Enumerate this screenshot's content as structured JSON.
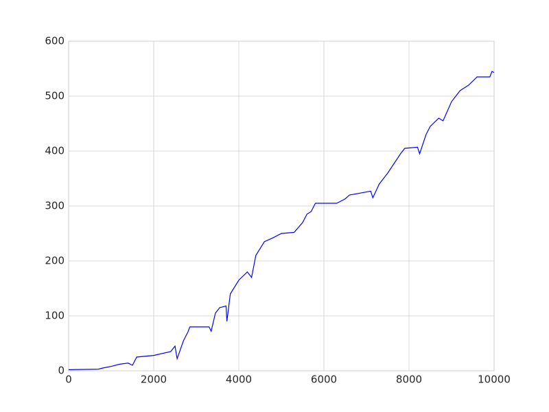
{
  "chart_data": {
    "type": "line",
    "x": [
      0,
      700,
      800,
      1000,
      1200,
      1400,
      1500,
      1600,
      2000,
      2400,
      2500,
      2550,
      2700,
      2800,
      2850,
      3300,
      3350,
      3450,
      3550,
      3700,
      3720,
      3800,
      4000,
      4200,
      4300,
      4400,
      4600,
      4800,
      5000,
      5300,
      5500,
      5600,
      5700,
      5800,
      6300,
      6500,
      6600,
      7100,
      7150,
      7300,
      7500,
      7800,
      7900,
      8200,
      8250,
      8400,
      8500,
      8700,
      8800,
      9000,
      9200,
      9400,
      9600,
      9900,
      9950,
      10000
    ],
    "series": [
      {
        "color": "#0000ff",
        "values": [
          2,
          3,
          5,
          8,
          12,
          14,
          10,
          25,
          28,
          35,
          45,
          22,
          55,
          70,
          80,
          80,
          72,
          105,
          115,
          118,
          90,
          140,
          165,
          180,
          170,
          210,
          235,
          242,
          250,
          252,
          270,
          285,
          290,
          305,
          305,
          313,
          320,
          327,
          315,
          340,
          360,
          395,
          405,
          407,
          395,
          430,
          445,
          460,
          455,
          490,
          510,
          520,
          535,
          535,
          545,
          543
        ]
      }
    ],
    "xlim": [
      0,
      10000
    ],
    "xticks": [
      0,
      2000,
      4000,
      6000,
      8000,
      10000
    ],
    "ylim": [
      0,
      600
    ],
    "yticks": [
      0,
      100,
      200,
      300,
      400,
      500,
      600
    ],
    "grid": true
  }
}
